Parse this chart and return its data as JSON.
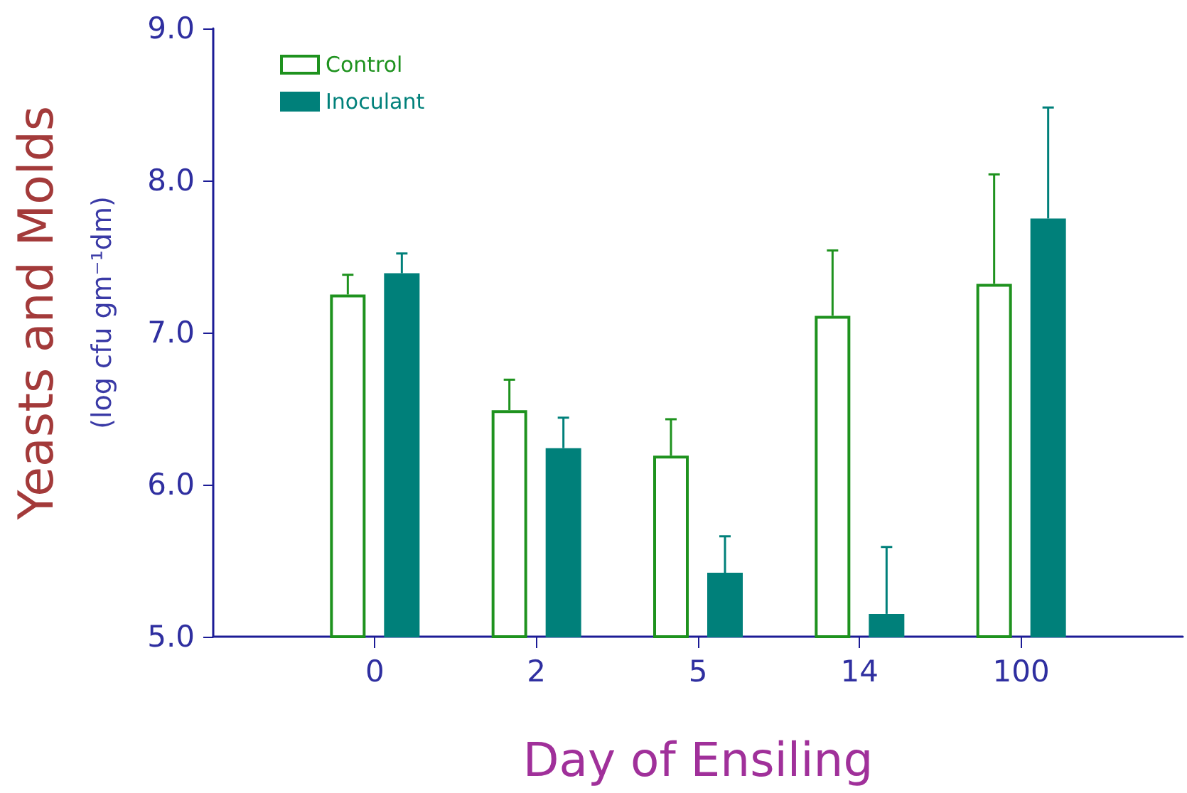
{
  "chart_data": {
    "type": "bar",
    "xlabel": "Day of Ensiling",
    "ylabel": "Yeasts and Molds\n(log cfu gm⁻¹dm)",
    "categories": [
      "0",
      "2",
      "5",
      "14",
      "100"
    ],
    "series": [
      {
        "name": "Control",
        "color": "#1e921e",
        "values": [
          7.25,
          6.49,
          6.19,
          7.11,
          7.32
        ],
        "errors": [
          [
            7.25,
            7.38
          ],
          [
            6.49,
            6.69
          ],
          [
            6.19,
            6.43
          ],
          [
            7.11,
            7.54
          ],
          [
            7.32,
            8.04
          ]
        ]
      },
      {
        "name": "Inoculant",
        "color": "#00807a",
        "values": [
          7.39,
          6.24,
          5.42,
          5.15,
          7.75
        ],
        "errors": [
          [
            7.39,
            7.52
          ],
          [
            6.24,
            6.44
          ],
          [
            5.42,
            5.66
          ],
          [
            5.15,
            5.59
          ],
          [
            7.75,
            8.48
          ]
        ]
      }
    ],
    "ylim": [
      5,
      9
    ],
    "yticks": [
      {
        "value": 5,
        "label": "5.0"
      },
      {
        "value": 6,
        "label": "6.0"
      },
      {
        "value": 7,
        "label": "7.0"
      },
      {
        "value": 8,
        "label": "8.0"
      },
      {
        "value": 9,
        "label": "9.0"
      }
    ],
    "legend": "top left"
  }
}
